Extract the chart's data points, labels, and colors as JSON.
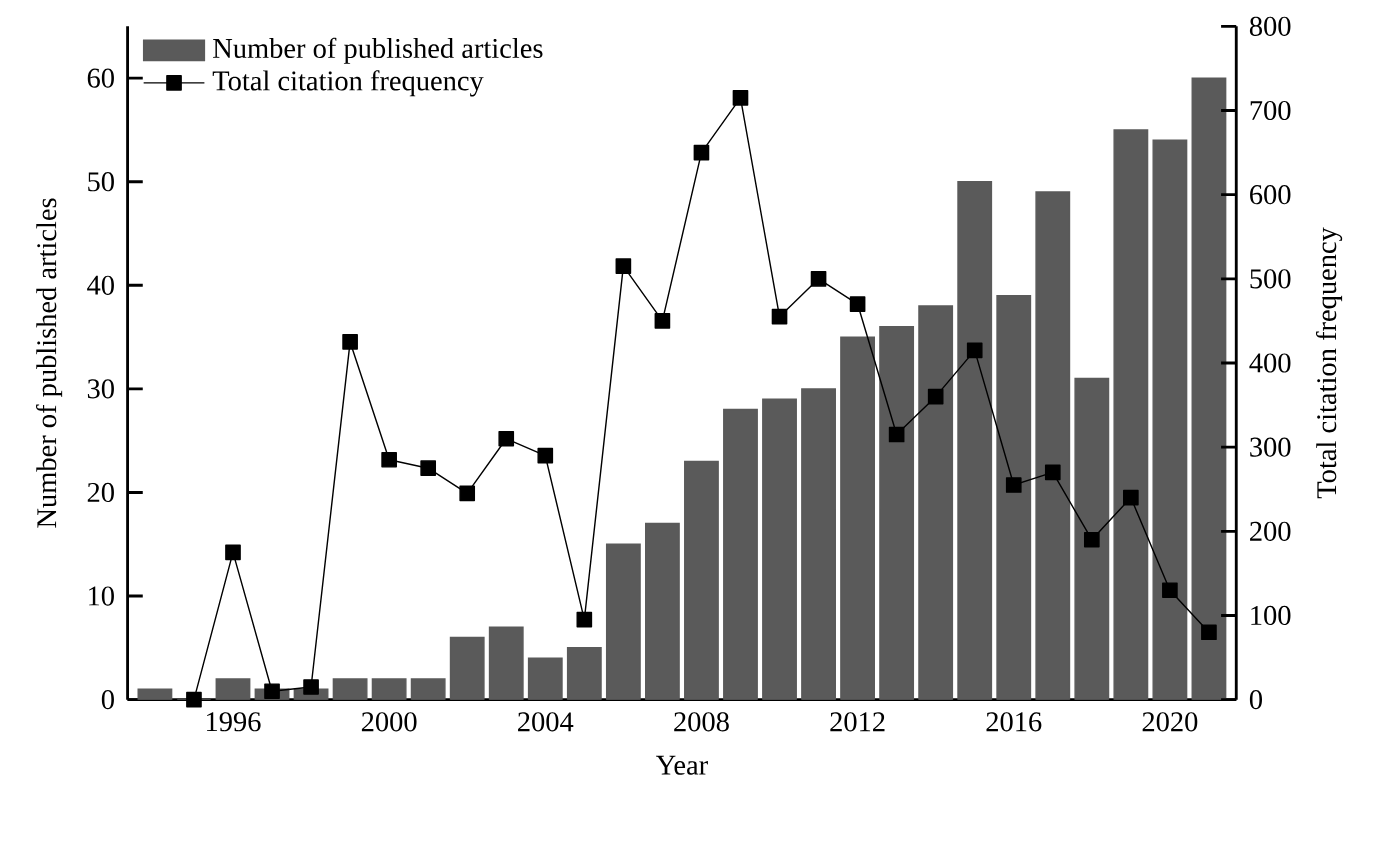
{
  "chart_data": {
    "type": "bar",
    "xlabel": "Year",
    "ylabel": "Number of published articles",
    "y2label": "Total citation frequency",
    "x": [
      1994,
      1995,
      1996,
      1997,
      1998,
      1999,
      2000,
      2001,
      2002,
      2003,
      2004,
      2005,
      2006,
      2007,
      2008,
      2009,
      2010,
      2011,
      2012,
      2013,
      2014,
      2015,
      2016,
      2017,
      2018,
      2019,
      2020,
      2021
    ],
    "series": [
      {
        "name": "Number of published articles",
        "color": "#5a5a5a",
        "values": [
          1,
          0,
          2,
          1,
          1,
          2,
          2,
          2,
          6,
          7,
          4,
          5,
          15,
          17,
          23,
          28,
          29,
          30,
          35,
          36,
          38,
          50,
          39,
          49,
          31,
          55,
          54,
          60
        ]
      },
      {
        "name": "Total citation frequency",
        "type": "line",
        "axis": "y2",
        "color": "#000000",
        "marker": "square",
        "values": [
          null,
          0,
          175,
          10,
          15,
          425,
          285,
          275,
          245,
          310,
          290,
          95,
          515,
          450,
          650,
          715,
          455,
          500,
          470,
          315,
          360,
          415,
          255,
          270,
          190,
          240,
          130,
          80
        ]
      }
    ],
    "xlim": [
      1993.3,
      2021.7
    ],
    "xticks": [
      1996,
      2000,
      2004,
      2008,
      2012,
      2016,
      2020
    ],
    "ylim": [
      0,
      65
    ],
    "yticks": [
      0,
      10,
      20,
      30,
      40,
      50,
      60
    ],
    "y2lim": [
      0,
      800
    ],
    "y2ticks": [
      0,
      100,
      200,
      300,
      400,
      500,
      600,
      700,
      800
    ],
    "legend": "top left",
    "grid": false
  }
}
